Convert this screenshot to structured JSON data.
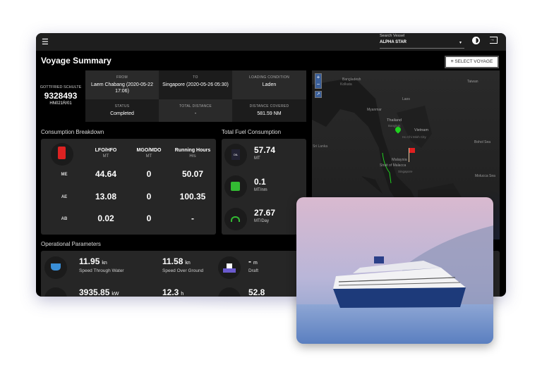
{
  "header": {
    "menu_icon": "hamburger-icon",
    "search_label": "Search Vessel",
    "vessel": "ALPHA STAR",
    "theme_icon": "brightness-icon",
    "logout_icon": "logout-icon"
  },
  "page": {
    "title": "Voyage Summary",
    "select_voyage": "SELECT VOYAGE"
  },
  "vessel": {
    "name": "GOTTFRIED SCHULTE",
    "imo": "9328493",
    "voyage": "HN021R/01"
  },
  "summary": [
    {
      "label": "FROM",
      "value": "Laem Chabang (2020-05-22 17:06)"
    },
    {
      "label": "TO",
      "value": "Singapore (2020-05-26 05:30)"
    },
    {
      "label": "LOADING CONDITION",
      "value": "Laden"
    },
    {
      "label": "STATUS",
      "value": "Completed"
    },
    {
      "label": "TOTAL DISTANCE",
      "value": "-"
    },
    {
      "label": "DISTANCE COVERED",
      "value": "581.59 NM"
    }
  ],
  "consumption": {
    "title": "Consumption Breakdown",
    "columns": [
      {
        "name": "LFO/HFO",
        "unit": "MT"
      },
      {
        "name": "MGO/MDO",
        "unit": "MT"
      },
      {
        "name": "Running Hours",
        "unit": "Hrs"
      }
    ],
    "rows": [
      {
        "label": "ME",
        "values": [
          "44.64",
          "0",
          "50.07"
        ]
      },
      {
        "label": "AE",
        "values": [
          "13.08",
          "0",
          "100.35"
        ]
      },
      {
        "label": "AB",
        "values": [
          "0.02",
          "0",
          "-"
        ]
      }
    ]
  },
  "fuel": {
    "title": "Total Fuel Consumption",
    "items": [
      {
        "value": "57.74",
        "unit": "MT",
        "icon": "oil-barrel-icon"
      },
      {
        "value": "0.1",
        "unit": "MT/nm",
        "icon": "fuel-efficiency-icon"
      },
      {
        "value": "27.67",
        "unit": "MT/Day",
        "icon": "fuel-nozzle-icon"
      }
    ]
  },
  "operational": {
    "title": "Operational Parameters",
    "items": [
      {
        "value": "11.95",
        "unit": "kn",
        "label": "Speed Through Water"
      },
      {
        "value": "11.58",
        "unit": "kn",
        "label": "Speed Over Ground"
      },
      {
        "value": "-",
        "unit": "m",
        "label": "Draft"
      },
      {
        "value": "3935.85",
        "unit": "kW",
        "label": ""
      },
      {
        "value": "12.3",
        "unit": "h",
        "label": ""
      },
      {
        "value": "52.8",
        "unit": "",
        "label": ""
      }
    ]
  },
  "map": {
    "labels": [
      "Bangladesh",
      "Kolkata",
      "Myanmar",
      "Laos",
      "Thailand",
      "Bangkok",
      "Vietnam",
      "Ho Chi Minh City",
      "Malaysia",
      "Strait of Malacca",
      "Singapore",
      "Taiwan",
      "Bohol Sea",
      "Sri Lanka",
      "Molucca Sea"
    ]
  }
}
